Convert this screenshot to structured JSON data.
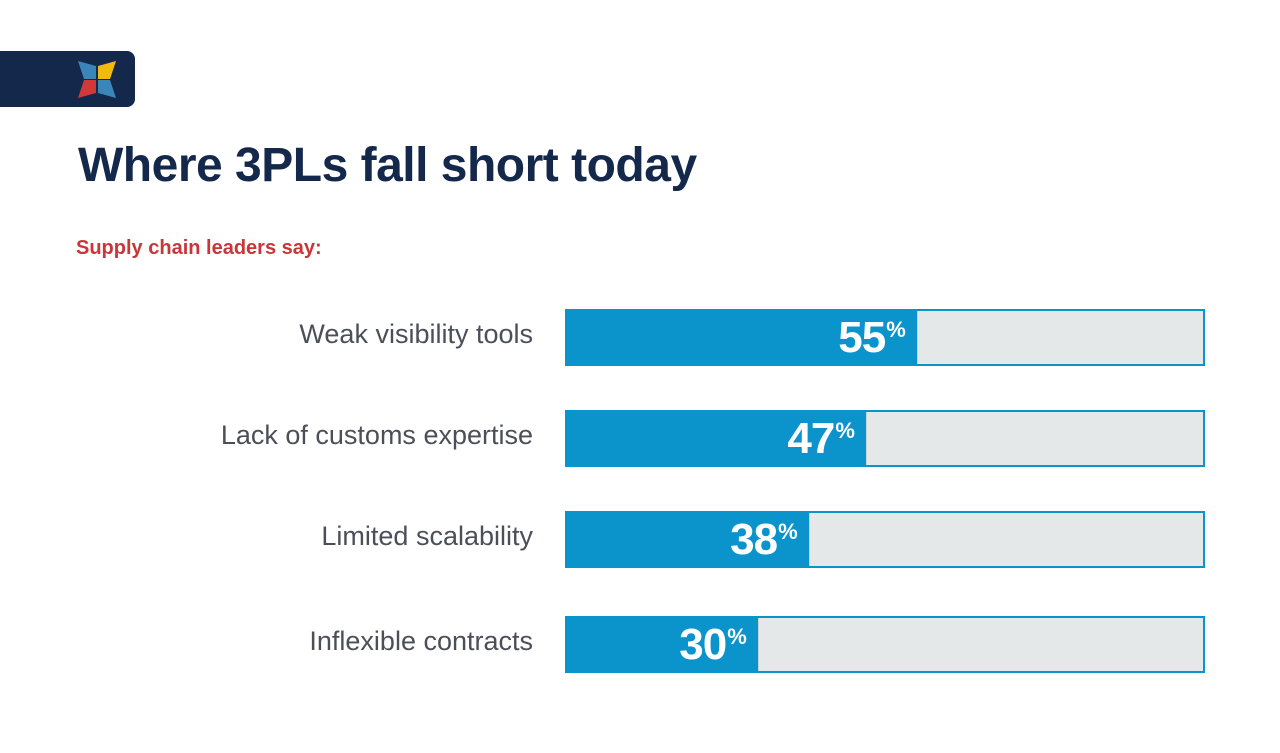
{
  "title": "Where 3PLs fall short today",
  "subtitle": "Supply chain leaders say:",
  "colors": {
    "bar": "#0b93cc",
    "track": "#e4e8e9",
    "title": "#14284b",
    "subtitle": "#c8363a",
    "logo_bg": "#14284b"
  },
  "logo_icon": "four-petal-logo-icon",
  "chart_data": {
    "type": "bar",
    "orientation": "horizontal",
    "categories": [
      "Weak visibility tools",
      "Lack of customs expertise",
      "Limited scalability",
      "Inflexible contracts"
    ],
    "values": [
      55,
      47,
      38,
      30
    ],
    "value_labels": [
      "55",
      "47",
      "38",
      "30"
    ],
    "unit": "%",
    "xlim": [
      0,
      100
    ],
    "grid": false
  }
}
